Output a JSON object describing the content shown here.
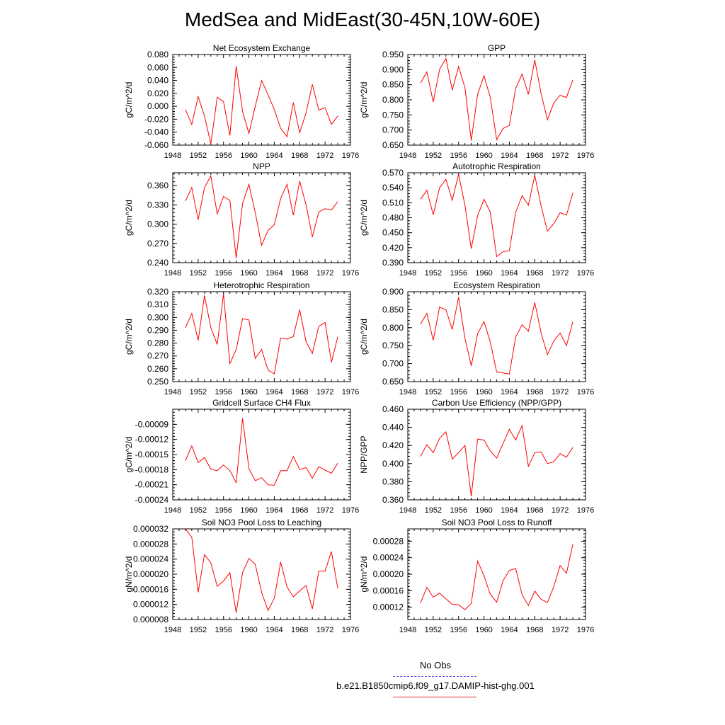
{
  "title": "MedSea and MidEast(30-45N,10W-60E)",
  "legend": [
    {
      "label": "No Obs",
      "color": "#5a5ae6",
      "style": "dashed"
    },
    {
      "label": "b.e21.B1850cmip6.f09_g17.DAMIP-hist-ghg.001",
      "color": "#e03030",
      "style": "solid"
    }
  ],
  "chart_data": [
    {
      "type": "line",
      "title": "Net Ecosystem Exchange",
      "ylabel": "gC/m^2/d",
      "xlim": [
        1948,
        1976
      ],
      "xticks": [
        "1948",
        "1952",
        "1956",
        "1960",
        "1964",
        "1968",
        "1972",
        "1976"
      ],
      "ylim": [
        -0.06,
        0.08
      ],
      "yticks": [
        "-0.060",
        "-0.040",
        "-0.020",
        "0.000",
        "0.020",
        "0.040",
        "0.060",
        "0.080"
      ],
      "series": [
        {
          "color": "#ff0000",
          "x": [
            1950,
            1951,
            1952,
            1953,
            1954,
            1955,
            1956,
            1957,
            1958,
            1959,
            1960,
            1961,
            1962,
            1963,
            1964,
            1965,
            1966,
            1967,
            1968,
            1969,
            1970,
            1971,
            1972,
            1973,
            1974
          ],
          "values": [
            -0.005,
            -0.028,
            0.015,
            -0.015,
            -0.058,
            0.014,
            0.007,
            -0.045,
            0.062,
            -0.008,
            -0.042,
            0.0,
            0.04,
            0.018,
            -0.005,
            -0.034,
            -0.047,
            0.006,
            -0.041,
            -0.01,
            0.034,
            -0.006,
            -0.002,
            -0.028,
            -0.015
          ]
        }
      ]
    },
    {
      "type": "line",
      "title": "GPP",
      "ylabel": "gC/m^2/d",
      "xlim": [
        1948,
        1976
      ],
      "xticks": [
        "1948",
        "1952",
        "1956",
        "1960",
        "1964",
        "1968",
        "1972",
        "1976"
      ],
      "ylim": [
        0.65,
        0.95
      ],
      "yticks": [
        "0.650",
        "0.700",
        "0.750",
        "0.800",
        "0.850",
        "0.900",
        "0.950"
      ],
      "series": [
        {
          "color": "#ff0000",
          "x": [
            1950,
            1951,
            1952,
            1953,
            1954,
            1955,
            1956,
            1957,
            1958,
            1959,
            1960,
            1961,
            1962,
            1963,
            1964,
            1965,
            1966,
            1967,
            1968,
            1969,
            1970,
            1971,
            1972,
            1973,
            1974
          ],
          "values": [
            0.855,
            0.892,
            0.793,
            0.9,
            0.937,
            0.832,
            0.91,
            0.84,
            0.665,
            0.818,
            0.88,
            0.808,
            0.668,
            0.705,
            0.715,
            0.838,
            0.885,
            0.818,
            0.932,
            0.82,
            0.734,
            0.79,
            0.815,
            0.808,
            0.866
          ]
        }
      ]
    },
    {
      "type": "line",
      "title": "NPP",
      "ylabel": "gC/m^2/d",
      "xlim": [
        1948,
        1976
      ],
      "xticks": [
        "1948",
        "1952",
        "1956",
        "1960",
        "1964",
        "1968",
        "1972",
        "1976"
      ],
      "ylim": [
        0.24,
        0.38
      ],
      "yticks": [
        "0.240",
        "0.270",
        "0.300",
        "0.330",
        "0.360"
      ],
      "series": [
        {
          "color": "#ff0000",
          "x": [
            1950,
            1951,
            1952,
            1953,
            1954,
            1955,
            1956,
            1957,
            1958,
            1959,
            1960,
            1961,
            1962,
            1963,
            1964,
            1965,
            1966,
            1967,
            1968,
            1969,
            1970,
            1971,
            1972,
            1973,
            1974
          ],
          "values": [
            0.336,
            0.357,
            0.307,
            0.357,
            0.375,
            0.316,
            0.343,
            0.337,
            0.247,
            0.332,
            0.362,
            0.318,
            0.267,
            0.29,
            0.299,
            0.34,
            0.362,
            0.314,
            0.367,
            0.33,
            0.28,
            0.319,
            0.324,
            0.322,
            0.335
          ]
        }
      ]
    },
    {
      "type": "line",
      "title": "Autotrophic Respiration",
      "ylabel": "gC/m^2/d",
      "xlim": [
        1948,
        1976
      ],
      "xticks": [
        "1948",
        "1952",
        "1956",
        "1960",
        "1964",
        "1968",
        "1972",
        "1976"
      ],
      "ylim": [
        0.39,
        0.57
      ],
      "yticks": [
        "0.390",
        "0.420",
        "0.450",
        "0.480",
        "0.510",
        "0.540",
        "0.570"
      ],
      "series": [
        {
          "color": "#ff0000",
          "x": [
            1950,
            1951,
            1952,
            1953,
            1954,
            1955,
            1956,
            1957,
            1958,
            1959,
            1960,
            1961,
            1962,
            1963,
            1964,
            1965,
            1966,
            1967,
            1968,
            1969,
            1970,
            1971,
            1972,
            1973,
            1974
          ],
          "values": [
            0.517,
            0.535,
            0.486,
            0.54,
            0.557,
            0.515,
            0.567,
            0.505,
            0.418,
            0.484,
            0.517,
            0.491,
            0.402,
            0.412,
            0.414,
            0.491,
            0.524,
            0.505,
            0.565,
            0.503,
            0.453,
            0.468,
            0.49,
            0.485,
            0.53
          ]
        }
      ]
    },
    {
      "type": "line",
      "title": "Heterotrophic Respiration",
      "ylabel": "gC/m^2/d",
      "xlim": [
        1948,
        1976
      ],
      "xticks": [
        "1948",
        "1952",
        "1956",
        "1960",
        "1964",
        "1968",
        "1972",
        "1976"
      ],
      "ylim": [
        0.25,
        0.32
      ],
      "yticks": [
        "0.250",
        "0.260",
        "0.270",
        "0.280",
        "0.290",
        "0.300",
        "0.310",
        "0.320"
      ],
      "series": [
        {
          "color": "#ff0000",
          "x": [
            1950,
            1951,
            1952,
            1953,
            1954,
            1955,
            1956,
            1957,
            1958,
            1959,
            1960,
            1961,
            1962,
            1963,
            1964,
            1965,
            1966,
            1967,
            1968,
            1969,
            1970,
            1971,
            1972,
            1973,
            1974
          ],
          "values": [
            0.292,
            0.303,
            0.282,
            0.317,
            0.292,
            0.279,
            0.318,
            0.264,
            0.275,
            0.299,
            0.298,
            0.268,
            0.275,
            0.259,
            0.256,
            0.284,
            0.283,
            0.285,
            0.306,
            0.281,
            0.272,
            0.293,
            0.296,
            0.265,
            0.285
          ]
        }
      ]
    },
    {
      "type": "line",
      "title": "Ecosystem Respiration",
      "ylabel": "gC/m^2/d",
      "xlim": [
        1948,
        1976
      ],
      "xticks": [
        "1948",
        "1952",
        "1956",
        "1960",
        "1964",
        "1968",
        "1972",
        "1976"
      ],
      "ylim": [
        0.65,
        0.9
      ],
      "yticks": [
        "0.650",
        "0.700",
        "0.750",
        "0.800",
        "0.850",
        "0.900"
      ],
      "series": [
        {
          "color": "#ff0000",
          "x": [
            1950,
            1951,
            1952,
            1953,
            1954,
            1955,
            1956,
            1957,
            1958,
            1959,
            1960,
            1961,
            1962,
            1963,
            1964,
            1965,
            1966,
            1967,
            1968,
            1969,
            1970,
            1971,
            1972,
            1973,
            1974
          ],
          "values": [
            0.81,
            0.84,
            0.765,
            0.857,
            0.85,
            0.795,
            0.885,
            0.77,
            0.694,
            0.783,
            0.817,
            0.76,
            0.677,
            0.674,
            0.671,
            0.774,
            0.808,
            0.79,
            0.87,
            0.785,
            0.725,
            0.763,
            0.785,
            0.75,
            0.817
          ]
        }
      ]
    },
    {
      "type": "line",
      "title": "Gridcell Surface CH4 Flux",
      "ylabel": "gC/m^2/d",
      "xlim": [
        1948,
        1976
      ],
      "xticks": [
        "1948",
        "1952",
        "1956",
        "1960",
        "1964",
        "1968",
        "1972",
        "1976"
      ],
      "ylim": [
        -0.00024,
        -6e-05
      ],
      "yticks": [
        "-0.00024",
        "-0.00021",
        "-0.00018",
        "-0.00015",
        "-0.00012",
        "-0.00009"
      ],
      "series": [
        {
          "color": "#ff0000",
          "x": [
            1950,
            1951,
            1952,
            1953,
            1954,
            1955,
            1956,
            1957,
            1958,
            1959,
            1960,
            1961,
            1962,
            1963,
            1964,
            1965,
            1966,
            1967,
            1968,
            1969,
            1970,
            1971,
            1972,
            1973,
            1974
          ],
          "values": [
            -0.000162,
            -0.000133,
            -0.000166,
            -0.000156,
            -0.000179,
            -0.000182,
            -0.000171,
            -0.000182,
            -0.000206,
            -7.8e-05,
            -0.000178,
            -0.000202,
            -0.000196,
            -0.00021,
            -0.000211,
            -0.000182,
            -0.000182,
            -0.000154,
            -0.00018,
            -0.000176,
            -0.000197,
            -0.000174,
            -0.000181,
            -0.000187,
            -0.000167
          ]
        }
      ]
    },
    {
      "type": "line",
      "title": "Carbon Use Efficiency (NPP/GPP)",
      "ylabel": "NPP/GPP",
      "xlim": [
        1948,
        1976
      ],
      "xticks": [
        "1948",
        "1952",
        "1956",
        "1960",
        "1964",
        "1968",
        "1972",
        "1976"
      ],
      "ylim": [
        0.36,
        0.46
      ],
      "yticks": [
        "0.360",
        "0.380",
        "0.400",
        "0.420",
        "0.440",
        "0.460"
      ],
      "series": [
        {
          "color": "#ff0000",
          "x": [
            1950,
            1951,
            1952,
            1953,
            1954,
            1955,
            1956,
            1957,
            1958,
            1959,
            1960,
            1961,
            1962,
            1963,
            1964,
            1965,
            1966,
            1967,
            1968,
            1969,
            1970,
            1971,
            1972,
            1973,
            1974
          ],
          "values": [
            0.408,
            0.421,
            0.412,
            0.428,
            0.435,
            0.405,
            0.412,
            0.42,
            0.364,
            0.427,
            0.426,
            0.414,
            0.406,
            0.422,
            0.438,
            0.426,
            0.442,
            0.397,
            0.412,
            0.413,
            0.4,
            0.402,
            0.411,
            0.407,
            0.418
          ]
        }
      ]
    },
    {
      "type": "line",
      "title": "Soil NO3 Pool Loss to Leaching",
      "ylabel": "gN/m^2/d",
      "xlim": [
        1948,
        1976
      ],
      "xticks": [
        "1948",
        "1952",
        "1956",
        "1960",
        "1964",
        "1968",
        "1972",
        "1976"
      ],
      "ylim": [
        8e-06,
        3.2e-05
      ],
      "yticks": [
        "0.000008",
        "0.000012",
        "0.000016",
        "0.000020",
        "0.000024",
        "0.000028",
        "0.000032"
      ],
      "series": [
        {
          "color": "#ff0000",
          "x": [
            1950,
            1951,
            1952,
            1953,
            1954,
            1955,
            1956,
            1957,
            1958,
            1959,
            1960,
            1961,
            1962,
            1963,
            1964,
            1965,
            1966,
            1967,
            1968,
            1969,
            1970,
            1971,
            1972,
            1973,
            1974
          ],
          "values": [
            3.2e-05,
            2.98e-05,
            1.52e-05,
            2.52e-05,
            2.3e-05,
            1.68e-05,
            1.82e-05,
            2.04e-05,
            9.8e-06,
            2.04e-05,
            2.42e-05,
            2.26e-05,
            1.52e-05,
            1.04e-05,
            1.36e-05,
            2.32e-05,
            1.66e-05,
            1.4e-05,
            1.56e-05,
            1.7e-05,
            1.08e-05,
            2.08e-05,
            2.08e-05,
            2.6e-05,
            1.62e-05
          ]
        }
      ]
    },
    {
      "type": "line",
      "title": "Soil NO3 Pool Loss to Runoff",
      "ylabel": "gN/m^2/d",
      "xlim": [
        1948,
        1976
      ],
      "xticks": [
        "1948",
        "1952",
        "1956",
        "1960",
        "1964",
        "1968",
        "1972",
        "1976"
      ],
      "ylim": [
        9e-05,
        0.00031
      ],
      "yticks": [
        "0.00012",
        "0.00016",
        "0.00020",
        "0.00024",
        "0.00028"
      ],
      "series": [
        {
          "color": "#ff0000",
          "x": [
            1950,
            1951,
            1952,
            1953,
            1954,
            1955,
            1956,
            1957,
            1958,
            1959,
            1960,
            1961,
            1962,
            1963,
            1964,
            1965,
            1966,
            1967,
            1968,
            1969,
            1970,
            1971,
            1972,
            1973,
            1974
          ],
          "values": [
            0.00013,
            0.000168,
            0.000144,
            0.000154,
            0.00014,
            0.000127,
            0.000126,
            0.000114,
            0.000129,
            0.000232,
            0.000196,
            0.000151,
            0.000132,
            0.000184,
            0.000209,
            0.000214,
            0.00015,
            0.000124,
            0.000159,
            0.000139,
            0.000131,
            0.00017,
            0.000221,
            0.000202,
            0.000273
          ]
        }
      ]
    }
  ]
}
